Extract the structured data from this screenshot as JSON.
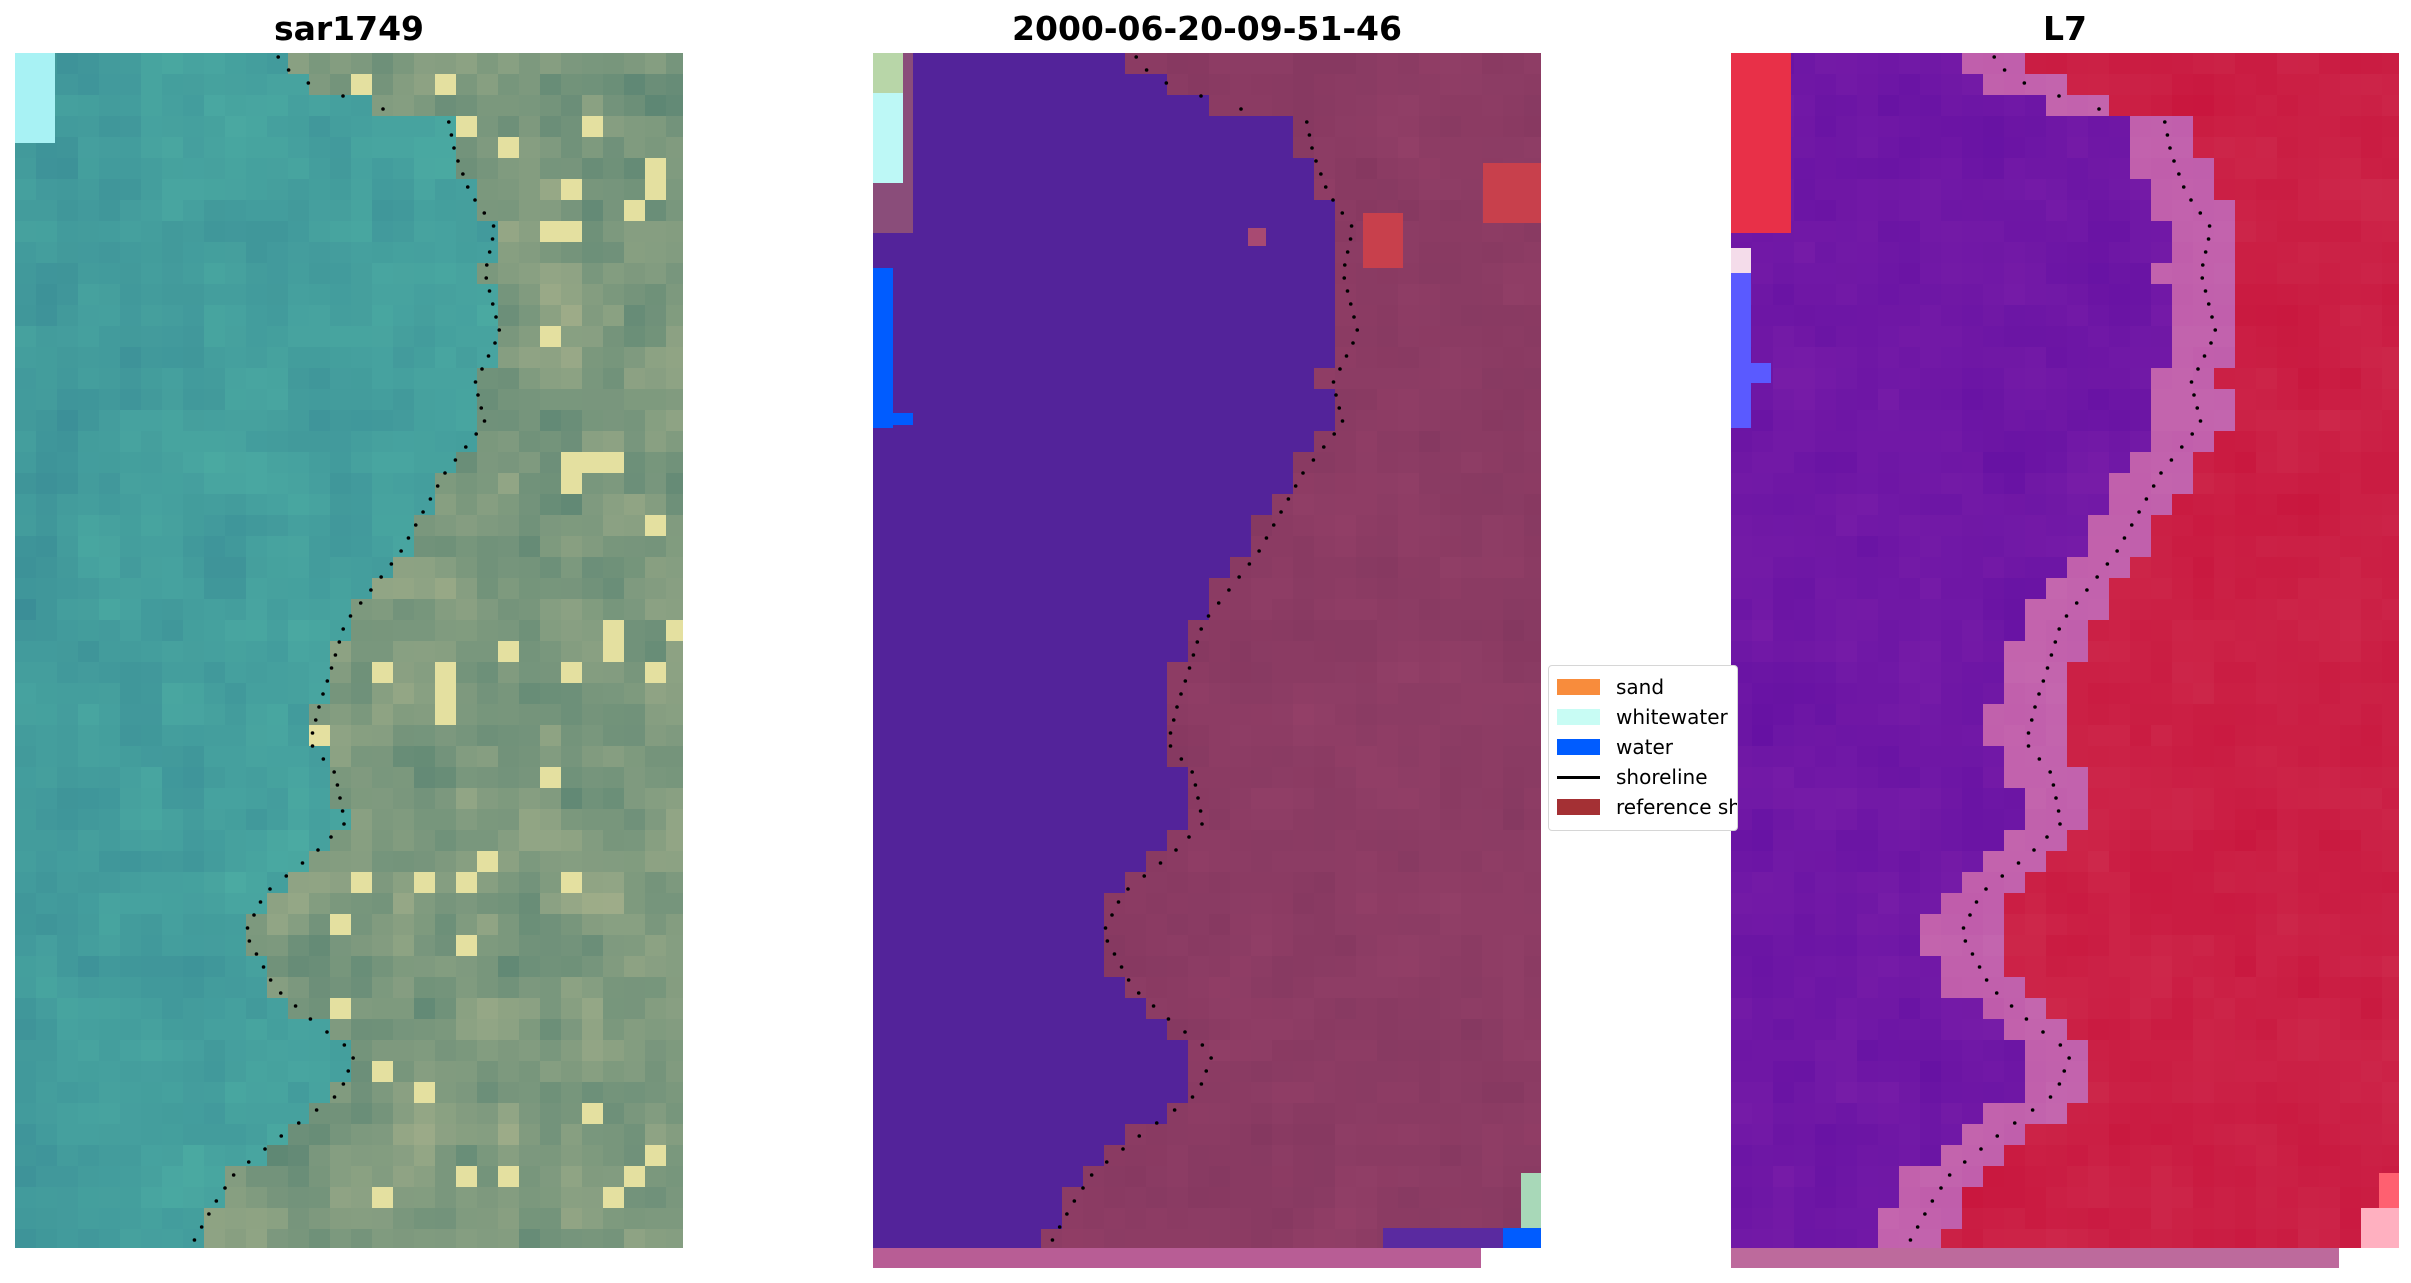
{
  "panels": [
    {
      "title": "sar1749"
    },
    {
      "title": "2000-06-20-09-51-46"
    },
    {
      "title": "L7"
    }
  ],
  "legend": {
    "items": [
      {
        "label": "sand",
        "color": "#f88c3c",
        "kind": "patch"
      },
      {
        "label": "whitewater",
        "color": "#c8fcf4",
        "kind": "patch"
      },
      {
        "label": "water",
        "color": "#005cff",
        "kind": "patch"
      },
      {
        "label": "shoreline",
        "color": "#000000",
        "kind": "line"
      },
      {
        "label": "reference shoreline",
        "color": "#a43034",
        "kind": "patch"
      }
    ]
  },
  "colors": {
    "water_class": "#53239a",
    "land_class": "#83375f",
    "l7_water": "#7a1ea8",
    "l7_land": "#c8143c",
    "strip": "#b85d95"
  }
}
